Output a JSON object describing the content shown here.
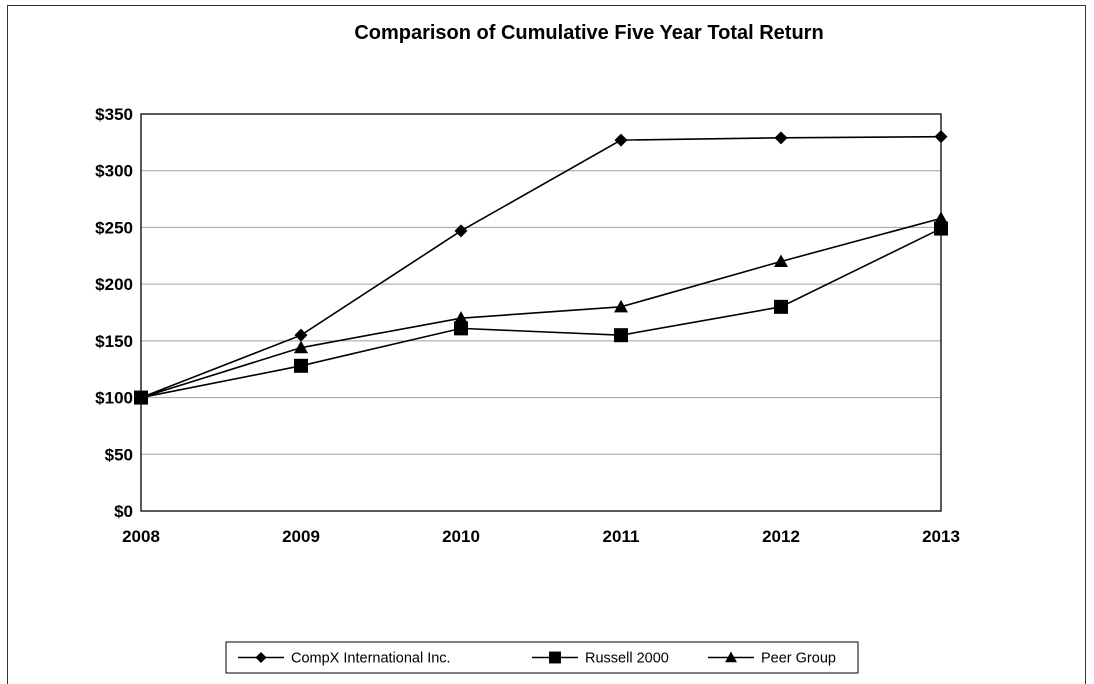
{
  "chart_data": {
    "type": "line",
    "title": "Comparison of Cumulative Five Year Total Return",
    "xlabel": "",
    "ylabel": "",
    "x": [
      "2008",
      "2009",
      "2010",
      "2011",
      "2012",
      "2013"
    ],
    "y_ticks": [
      "$0",
      "$50",
      "$100",
      "$150",
      "$200",
      "$250",
      "$300",
      "$350"
    ],
    "ylim": [
      0,
      350
    ],
    "grid": true,
    "legend_position": "bottom",
    "series": [
      {
        "name": "CompX International Inc.",
        "marker": "diamond",
        "values": [
          100,
          155,
          247,
          327,
          329,
          330
        ]
      },
      {
        "name": "Russell 2000",
        "marker": "square",
        "values": [
          100,
          128,
          161,
          155,
          180,
          249
        ]
      },
      {
        "name": "Peer Group",
        "marker": "triangle",
        "values": [
          100,
          144,
          170,
          180,
          220,
          258
        ]
      }
    ],
    "colors": {
      "line": "#000000",
      "grid": "#a0a0a0",
      "border": "#333333"
    }
  }
}
